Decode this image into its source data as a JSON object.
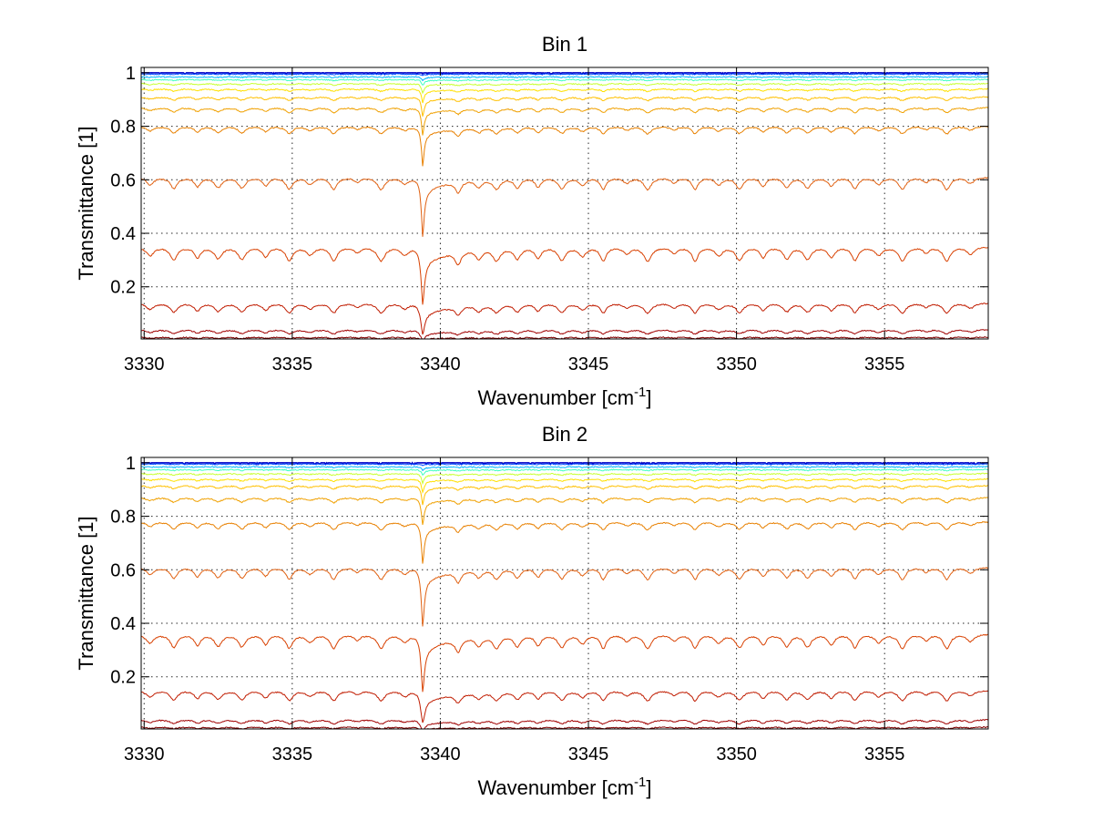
{
  "chart_data": [
    {
      "type": "line",
      "title": "Bin 1",
      "xlabel": "Wavenumber [cm",
      "xlabel_sup": "-1",
      "xlabel_end": "]",
      "ylabel": "Transmittance [1]",
      "xlim": [
        3329.9,
        3358.5
      ],
      "ylim": [
        0.005,
        1.02
      ],
      "xticks": [
        3330,
        3335,
        3340,
        3345,
        3350,
        3355
      ],
      "yticks": [
        0.2,
        0.4,
        0.6,
        0.8,
        1
      ],
      "ytick_labels": [
        "0.2",
        "0.4",
        "0.6",
        "0.8",
        "1"
      ],
      "grid": true,
      "strong_feature_at": 3339.4,
      "series_baselines": [
        1.0,
        0.995,
        0.985,
        0.975,
        0.96,
        0.94,
        0.91,
        0.87,
        0.8,
        0.61,
        0.35,
        0.14,
        0.04,
        0.012
      ],
      "series_colors": [
        "#0000c8",
        "#0050ff",
        "#00b4ff",
        "#40ffbf",
        "#c8ff30",
        "#ffe000",
        "#ffc000",
        "#f0a000",
        "#e88000",
        "#e06010",
        "#d84000",
        "#c01c00",
        "#a00000",
        "#800000"
      ]
    },
    {
      "type": "line",
      "title": "Bin 2",
      "xlabel": "Wavenumber [cm",
      "xlabel_sup": "-1",
      "xlabel_end": "]",
      "ylabel": "Transmittance [1]",
      "xlim": [
        3329.9,
        3358.5
      ],
      "ylim": [
        0.005,
        1.02
      ],
      "xticks": [
        3330,
        3335,
        3340,
        3345,
        3350,
        3355
      ],
      "yticks": [
        0.2,
        0.4,
        0.6,
        0.8,
        1
      ],
      "ytick_labels": [
        "0.2",
        "0.4",
        "0.6",
        "0.8",
        "1"
      ],
      "grid": true,
      "strong_feature_at": 3339.4,
      "series_baselines": [
        1.0,
        0.995,
        0.985,
        0.975,
        0.96,
        0.94,
        0.915,
        0.87,
        0.78,
        0.61,
        0.36,
        0.15,
        0.04,
        0.012
      ],
      "series_colors": [
        "#0000c8",
        "#0050ff",
        "#00b4ff",
        "#40ffbf",
        "#c8ff30",
        "#ffe000",
        "#ffc000",
        "#f0a000",
        "#e88000",
        "#e06010",
        "#d84000",
        "#c01c00",
        "#a00000",
        "#800000"
      ]
    }
  ]
}
